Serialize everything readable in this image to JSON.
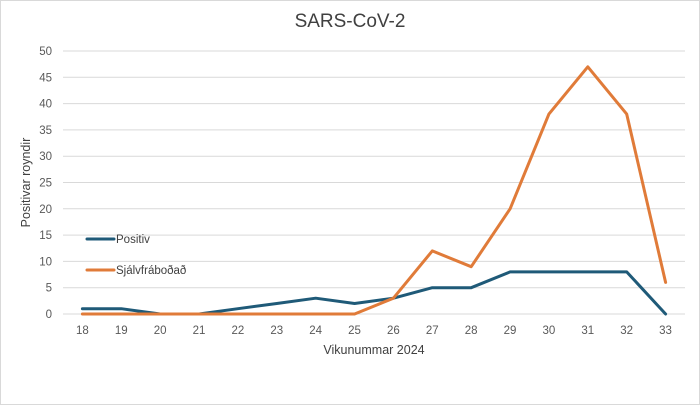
{
  "chart_data": {
    "type": "line",
    "title": "SARS-CoV-2",
    "xlabel": "Vikunummar 2024",
    "ylabel": "Positivar royndir",
    "categories": [
      "18",
      "19",
      "20",
      "21",
      "22",
      "23",
      "24",
      "25",
      "26",
      "27",
      "28",
      "29",
      "30",
      "31",
      "32",
      "33"
    ],
    "ylim": [
      0,
      50
    ],
    "yticks": [
      0,
      5,
      10,
      15,
      20,
      25,
      30,
      35,
      40,
      45,
      50
    ],
    "grid": true,
    "legend_position": "left",
    "series": [
      {
        "name": "Positiv",
        "color": "#1f5a78",
        "values": [
          1,
          1,
          0,
          0,
          1,
          2,
          3,
          2,
          3,
          5,
          5,
          8,
          8,
          8,
          8,
          0
        ]
      },
      {
        "name": "Sjálvfráboðað",
        "color": "#e07b39",
        "values": [
          0,
          0,
          0,
          0,
          0,
          0,
          0,
          0,
          3,
          12,
          9,
          20,
          38,
          47,
          38,
          6
        ]
      }
    ]
  }
}
